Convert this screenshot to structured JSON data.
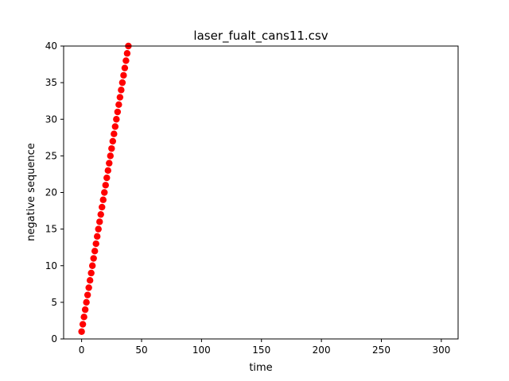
{
  "chart_data": {
    "type": "scatter",
    "title": "laser_fualt_cans11.csv",
    "xlabel": "time",
    "ylabel": "negative sequence",
    "xlim": [
      -15,
      314
    ],
    "ylim": [
      0,
      40
    ],
    "xticks": [
      0,
      50,
      100,
      150,
      200,
      250,
      300
    ],
    "yticks": [
      0,
      5,
      10,
      15,
      20,
      25,
      30,
      35,
      40
    ],
    "grid": false,
    "marker_color": "#ff0000",
    "series": [
      {
        "x": [
          0,
          1,
          2,
          3,
          4,
          5,
          6,
          7,
          8,
          9,
          10,
          11,
          12,
          13,
          14,
          15,
          16,
          17,
          18,
          19,
          20,
          21,
          22,
          23,
          24,
          25,
          26,
          27,
          28,
          29,
          30,
          31,
          32,
          33,
          34,
          35,
          36,
          37,
          38,
          39
        ],
        "y": [
          1,
          2,
          3,
          4,
          5,
          6,
          7,
          8,
          9,
          10,
          11,
          12,
          13,
          14,
          15,
          16,
          17,
          18,
          19,
          20,
          21,
          22,
          23,
          24,
          25,
          26,
          27,
          28,
          29,
          30,
          31,
          32,
          33,
          34,
          35,
          36,
          37,
          38,
          39,
          40
        ]
      }
    ]
  }
}
